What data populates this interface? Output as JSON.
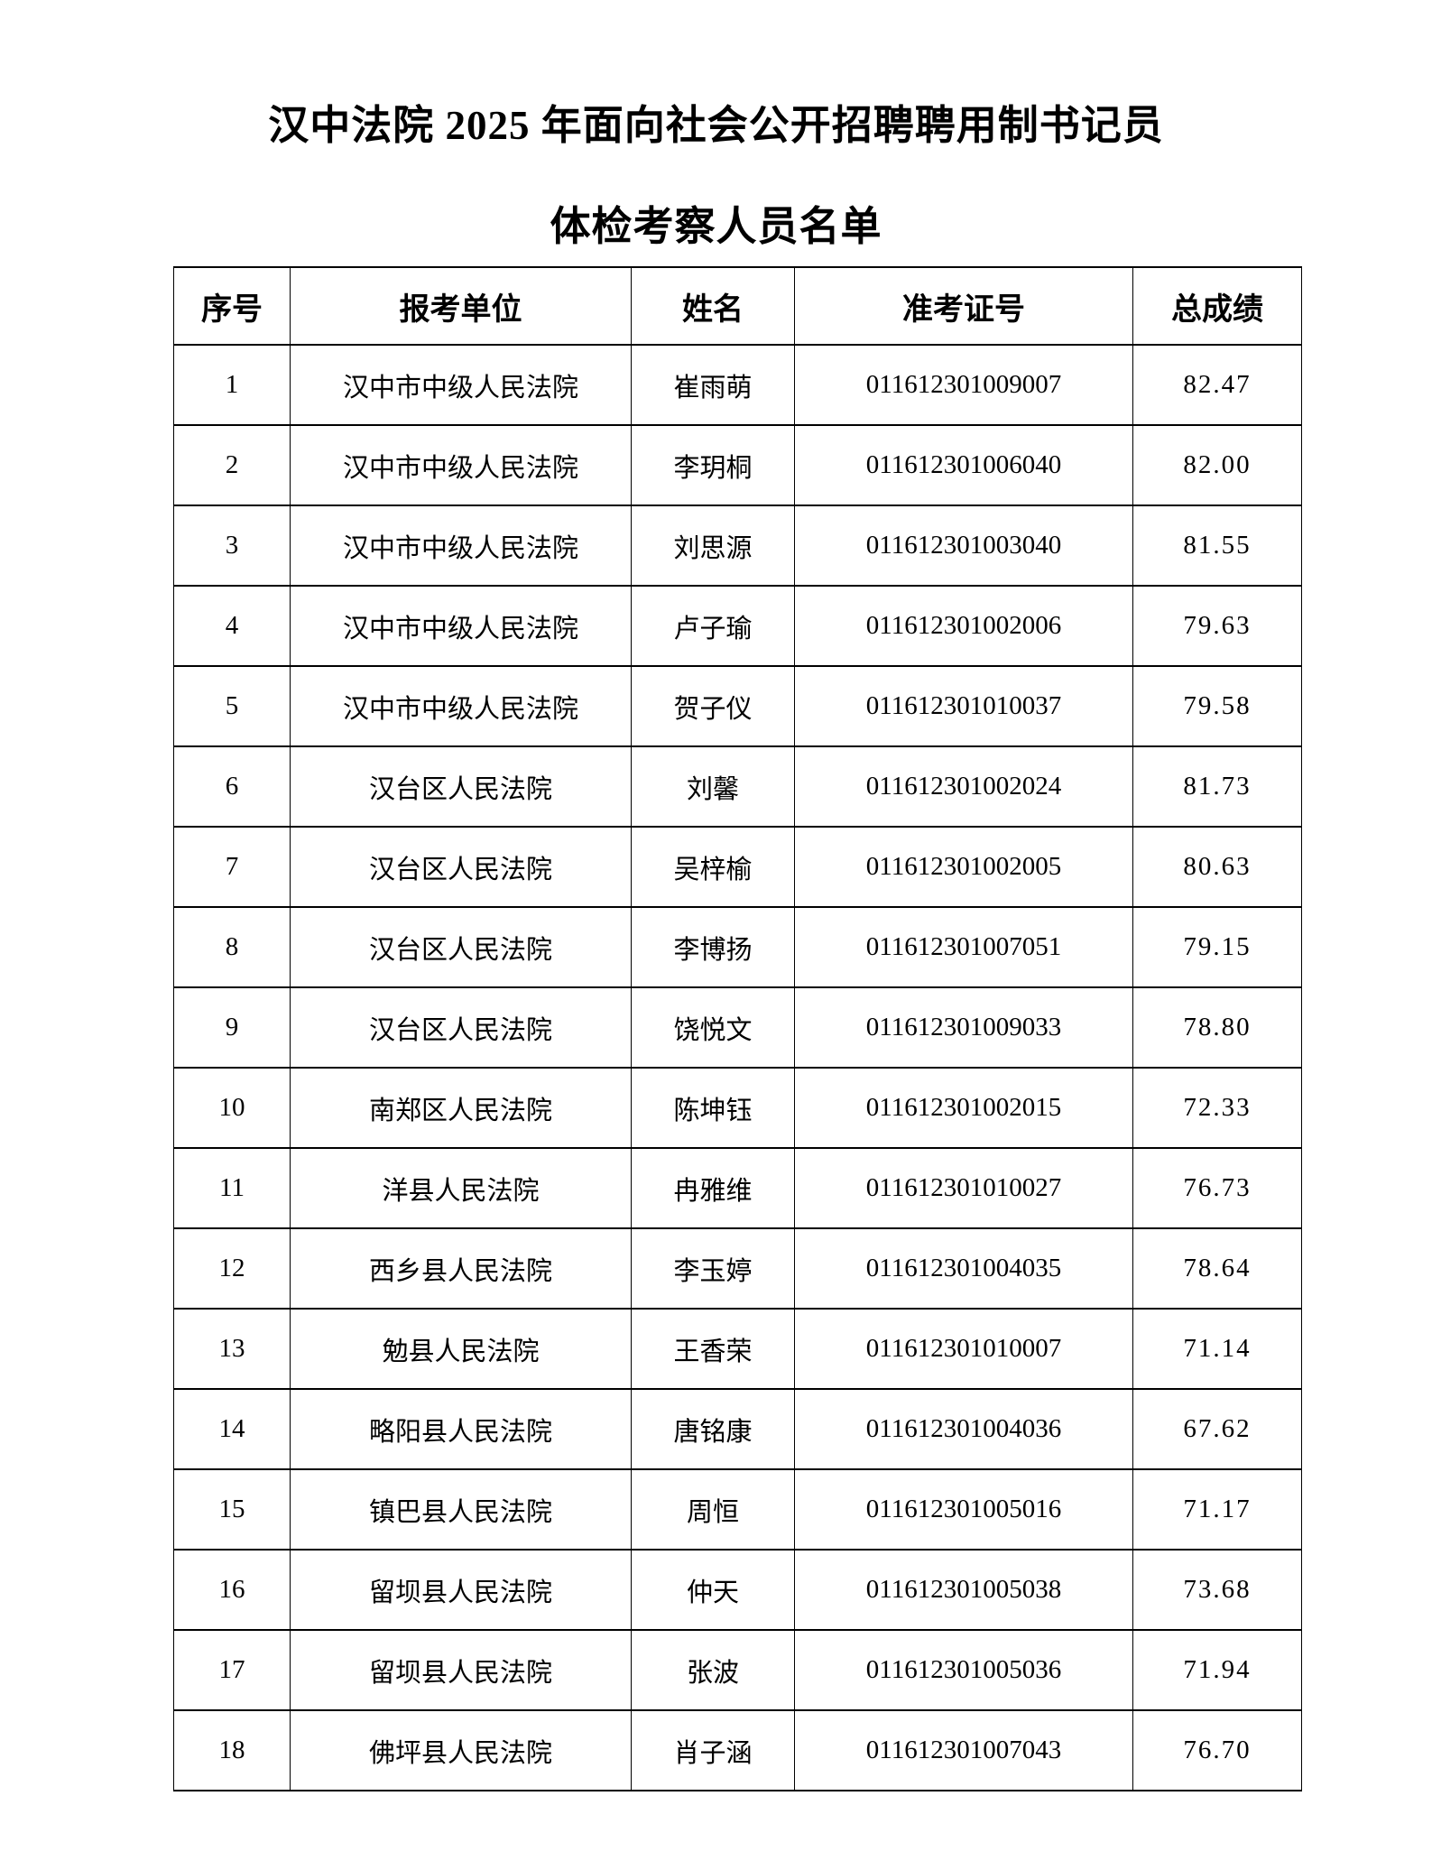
{
  "document": {
    "title_line1": "汉中法院 2025 年面向社会公开招聘聘用制书记员",
    "title_line2": "体检考察人员名单"
  },
  "table": {
    "headers": [
      "序号",
      "报考单位",
      "姓名",
      "准考证号",
      "总成绩"
    ],
    "rows": [
      {
        "seq": "1",
        "unit": "汉中市中级人民法院",
        "name": "崔雨萌",
        "ticket": "011612301009007",
        "score": "82.47"
      },
      {
        "seq": "2",
        "unit": "汉中市中级人民法院",
        "name": "李玥桐",
        "ticket": "011612301006040",
        "score": "82.00"
      },
      {
        "seq": "3",
        "unit": "汉中市中级人民法院",
        "name": "刘思源",
        "ticket": "011612301003040",
        "score": "81.55"
      },
      {
        "seq": "4",
        "unit": "汉中市中级人民法院",
        "name": "卢子瑜",
        "ticket": "011612301002006",
        "score": "79.63"
      },
      {
        "seq": "5",
        "unit": "汉中市中级人民法院",
        "name": "贺子仪",
        "ticket": "011612301010037",
        "score": "79.58"
      },
      {
        "seq": "6",
        "unit": "汉台区人民法院",
        "name": "刘馨",
        "ticket": "011612301002024",
        "score": "81.73"
      },
      {
        "seq": "7",
        "unit": "汉台区人民法院",
        "name": "吴梓榆",
        "ticket": "011612301002005",
        "score": "80.63"
      },
      {
        "seq": "8",
        "unit": "汉台区人民法院",
        "name": "李博扬",
        "ticket": "011612301007051",
        "score": "79.15"
      },
      {
        "seq": "9",
        "unit": "汉台区人民法院",
        "name": "饶悦文",
        "ticket": "011612301009033",
        "score": "78.80"
      },
      {
        "seq": "10",
        "unit": "南郑区人民法院",
        "name": "陈坤钰",
        "ticket": "011612301002015",
        "score": "72.33"
      },
      {
        "seq": "11",
        "unit": "洋县人民法院",
        "name": "冉雅维",
        "ticket": "011612301010027",
        "score": "76.73"
      },
      {
        "seq": "12",
        "unit": "西乡县人民法院",
        "name": "李玉婷",
        "ticket": "011612301004035",
        "score": "78.64"
      },
      {
        "seq": "13",
        "unit": "勉县人民法院",
        "name": "王香荣",
        "ticket": "011612301010007",
        "score": "71.14"
      },
      {
        "seq": "14",
        "unit": "略阳县人民法院",
        "name": "唐铭康",
        "ticket": "011612301004036",
        "score": "67.62"
      },
      {
        "seq": "15",
        "unit": "镇巴县人民法院",
        "name": "周恒",
        "ticket": "011612301005016",
        "score": "71.17"
      },
      {
        "seq": "16",
        "unit": "留坝县人民法院",
        "name": "仲天",
        "ticket": "011612301005038",
        "score": "73.68"
      },
      {
        "seq": "17",
        "unit": "留坝县人民法院",
        "name": "张波",
        "ticket": "011612301005036",
        "score": "71.94"
      },
      {
        "seq": "18",
        "unit": "佛坪县人民法院",
        "name": "肖子涵",
        "ticket": "011612301007043",
        "score": "76.70"
      }
    ]
  },
  "colors": {
    "text": "#000000",
    "border": "#000000",
    "background": "#ffffff"
  }
}
